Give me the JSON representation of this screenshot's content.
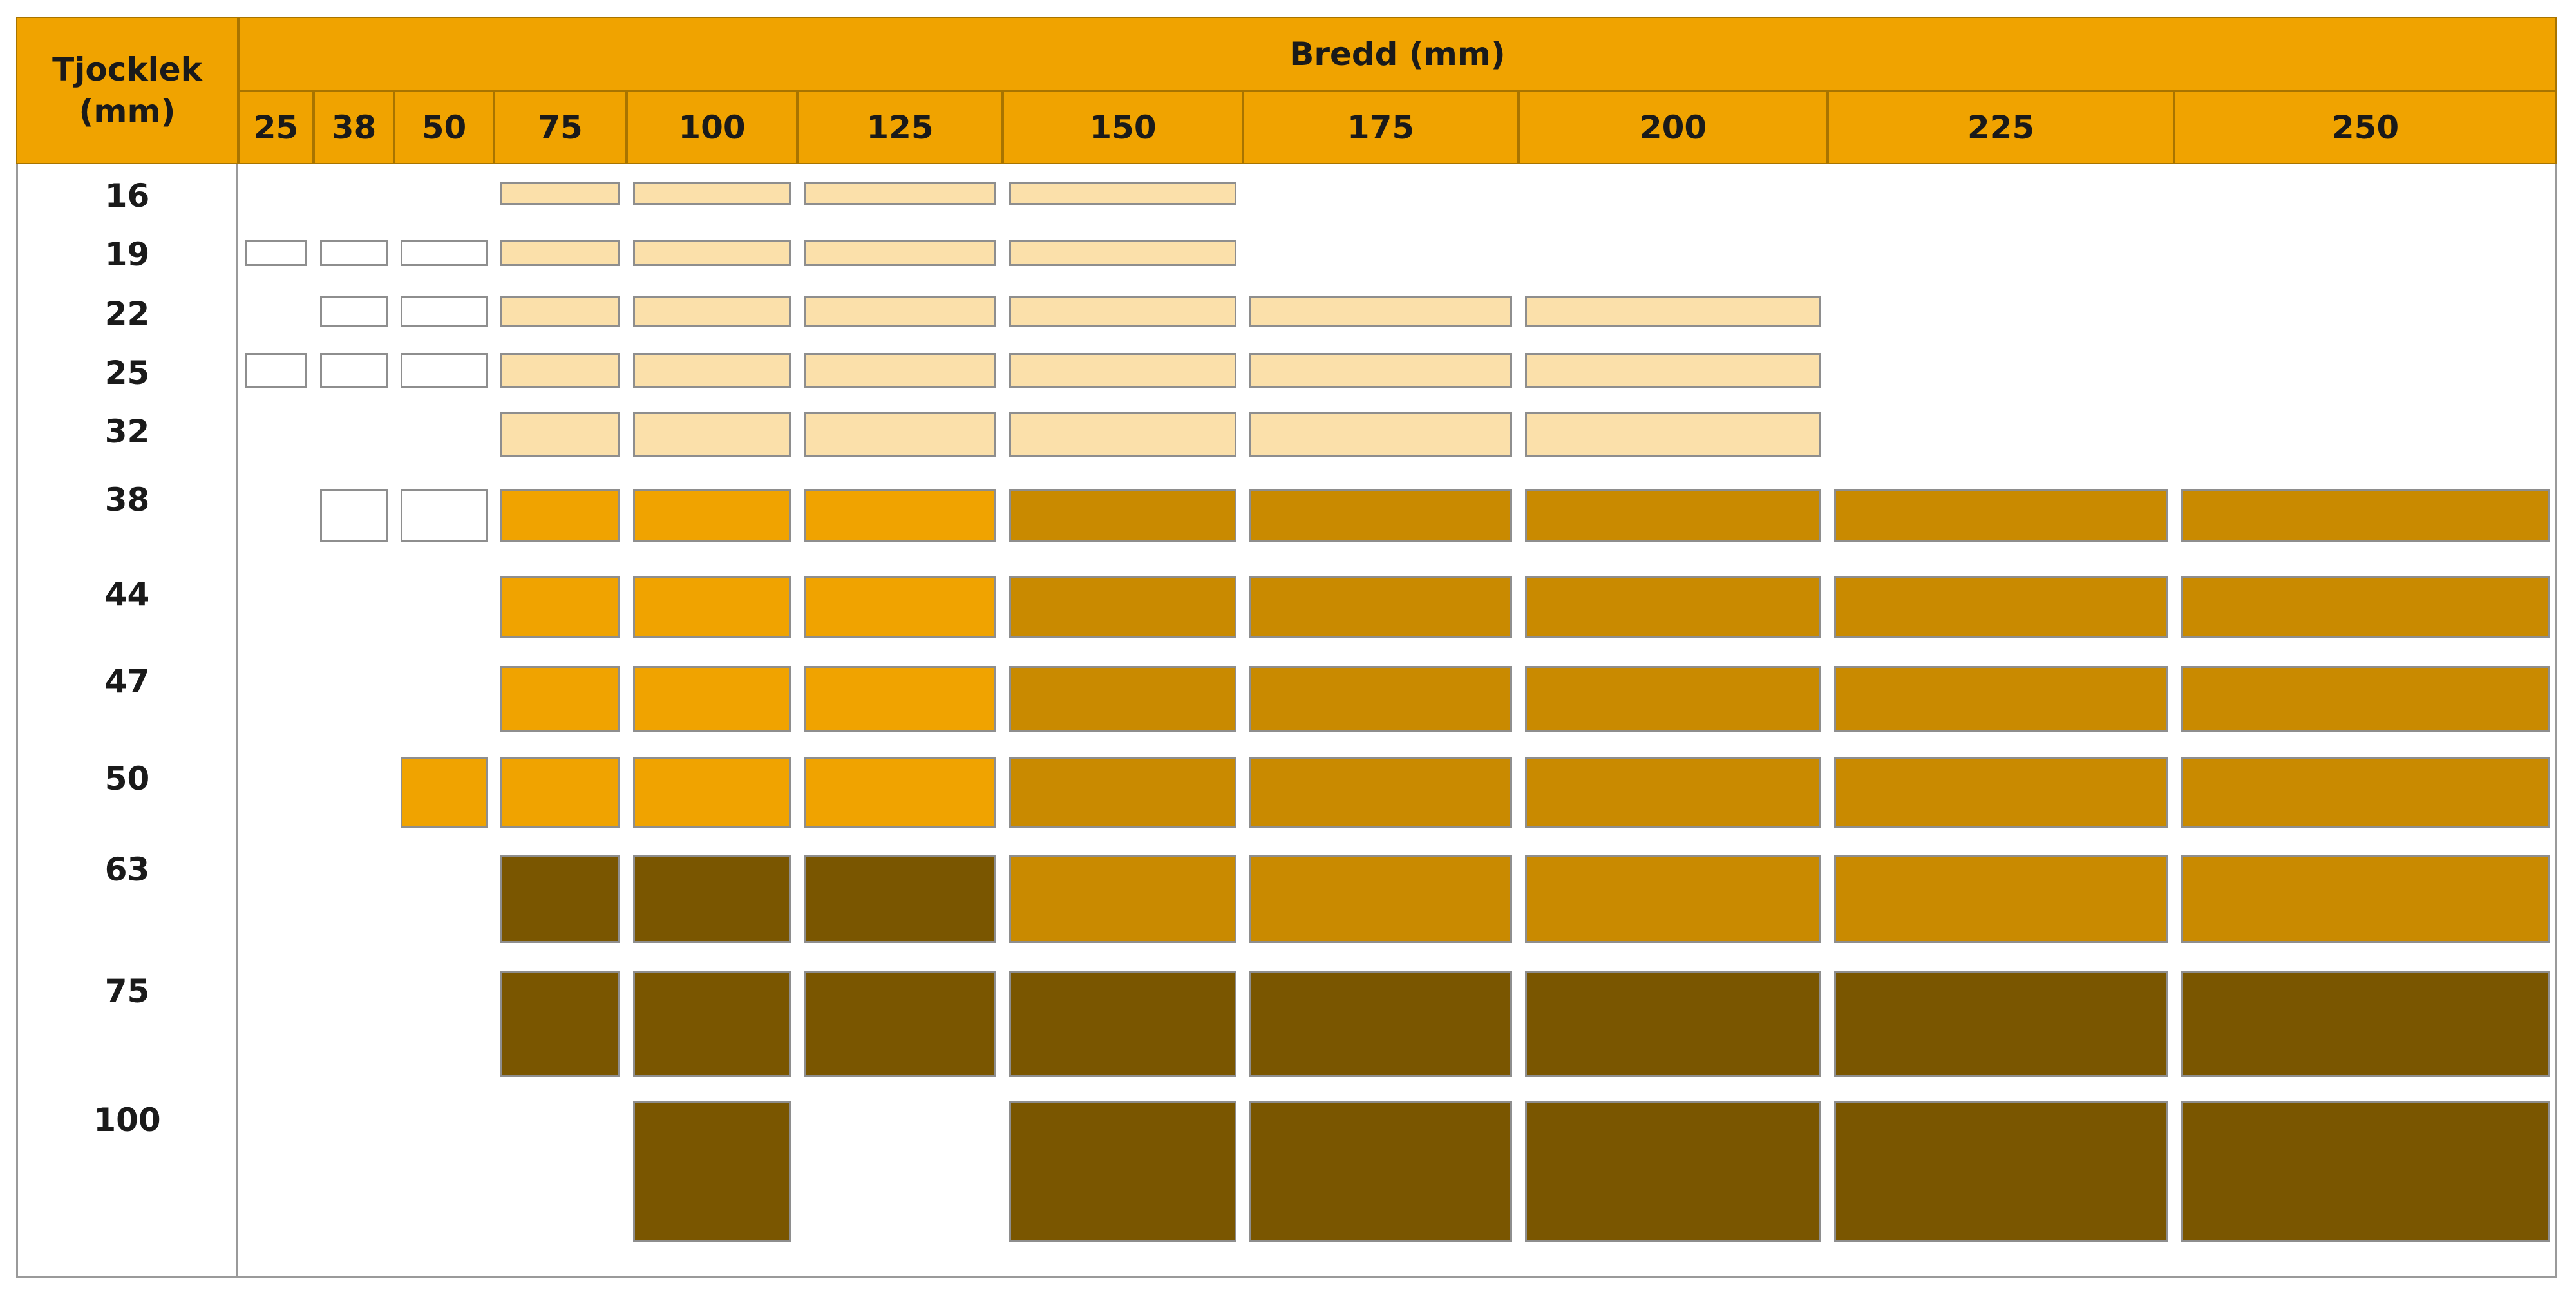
{
  "header": {
    "row_axis_label": [
      "Tjocklek",
      "(mm)"
    ],
    "col_axis_label": "Bredd (mm)"
  },
  "widths": [
    "25",
    "38",
    "50",
    "75",
    "100",
    "125",
    "150",
    "175",
    "200",
    "225",
    "250"
  ],
  "thicknesses": [
    "16",
    "19",
    "22",
    "25",
    "32",
    "38",
    "44",
    "47",
    "50",
    "63",
    "75",
    "100"
  ],
  "colors": {
    "header": "#f0a300",
    "header_border": "#a87400",
    "white": "#ffffff",
    "light": "#fbe0aa",
    "orange": "#f0a300",
    "gold": "#c98a00",
    "brown": "#7a5600"
  },
  "chart_data": {
    "type": "table",
    "title": "",
    "row_header": "Tjocklek (mm)",
    "column_header": "Bredd (mm)",
    "columns": [
      "25",
      "38",
      "50",
      "75",
      "100",
      "125",
      "150",
      "175",
      "200",
      "225",
      "250"
    ],
    "rows": [
      {
        "thickness": "16",
        "cells": [
          null,
          null,
          null,
          "light",
          "light",
          "light",
          "light",
          null,
          null,
          null,
          null
        ]
      },
      {
        "thickness": "19",
        "cells": [
          "white",
          "white",
          "white",
          "light",
          "light",
          "light",
          "light",
          null,
          null,
          null,
          null
        ]
      },
      {
        "thickness": "22",
        "cells": [
          null,
          "white",
          "white",
          "light",
          "light",
          "light",
          "light",
          "light",
          "light",
          null,
          null
        ]
      },
      {
        "thickness": "25",
        "cells": [
          "white",
          "white",
          "white",
          "light",
          "light",
          "light",
          "light",
          "light",
          "light",
          null,
          null
        ]
      },
      {
        "thickness": "32",
        "cells": [
          null,
          null,
          null,
          "light",
          "light",
          "light",
          "light",
          "light",
          "light",
          null,
          null
        ]
      },
      {
        "thickness": "38",
        "cells": [
          null,
          "white",
          "white",
          "orange",
          "orange",
          "orange",
          "gold",
          "gold",
          "gold",
          "gold",
          "gold"
        ]
      },
      {
        "thickness": "44",
        "cells": [
          null,
          null,
          null,
          "orange",
          "orange",
          "orange",
          "gold",
          "gold",
          "gold",
          "gold",
          "gold"
        ]
      },
      {
        "thickness": "47",
        "cells": [
          null,
          null,
          null,
          "orange",
          "orange",
          "orange",
          "gold",
          "gold",
          "gold",
          "gold",
          "gold"
        ]
      },
      {
        "thickness": "50",
        "cells": [
          null,
          null,
          "orange",
          "orange",
          "orange",
          "orange",
          "gold",
          "gold",
          "gold",
          "gold",
          "gold"
        ]
      },
      {
        "thickness": "63",
        "cells": [
          null,
          null,
          null,
          "brown",
          "brown",
          "brown",
          "gold",
          "gold",
          "gold",
          "gold",
          "gold"
        ]
      },
      {
        "thickness": "75",
        "cells": [
          null,
          null,
          null,
          "brown",
          "brown",
          "brown",
          "brown",
          "brown",
          "brown",
          "brown",
          "brown"
        ]
      },
      {
        "thickness": "100",
        "cells": [
          null,
          null,
          null,
          null,
          "brown",
          null,
          "brown",
          "brown",
          "brown",
          "brown",
          "brown"
        ]
      }
    ]
  }
}
